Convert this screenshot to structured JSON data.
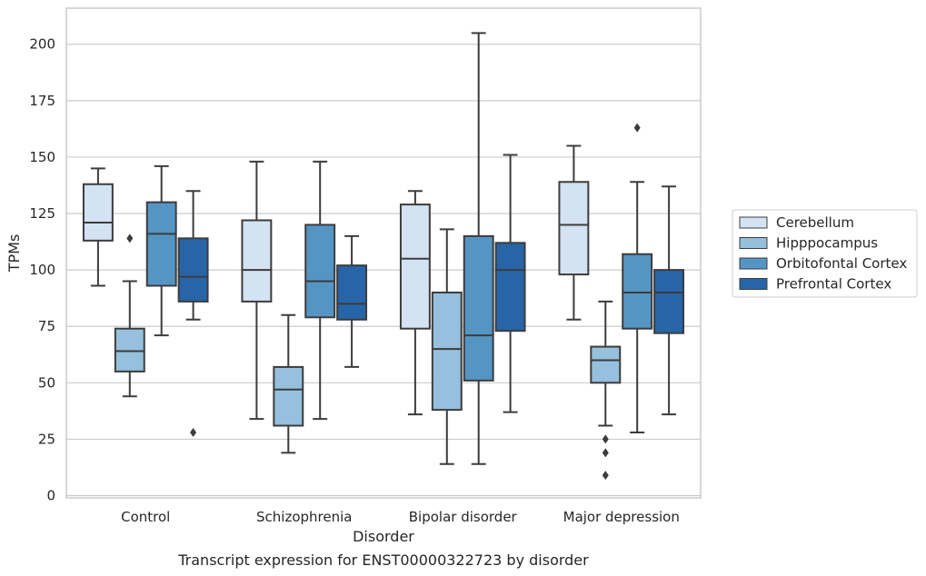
{
  "chart_data": {
    "type": "boxplot",
    "caption": "Transcript expression for ENST00000322723 by disorder",
    "xlabel": "Disorder",
    "ylabel": "TPMs",
    "ylim": [
      -1,
      216
    ],
    "yticks": [
      0,
      25,
      50,
      75,
      100,
      125,
      150,
      175,
      200
    ],
    "grid": true,
    "legend_position": "right",
    "categories": [
      "Control",
      "Schizophrenia",
      "Bipolar disorder",
      "Major depression"
    ],
    "series": [
      {
        "name": "Cerebellum",
        "color": "#d3e3f2",
        "boxes": [
          {
            "whisker_low": 93,
            "q1": 113,
            "median": 121,
            "q3": 138,
            "whisker_high": 145,
            "outliers": []
          },
          {
            "whisker_low": 34,
            "q1": 86,
            "median": 100,
            "q3": 122,
            "whisker_high": 148,
            "outliers": []
          },
          {
            "whisker_low": 36,
            "q1": 74,
            "median": 105,
            "q3": 129,
            "whisker_high": 135,
            "outliers": []
          },
          {
            "whisker_low": 78,
            "q1": 98,
            "median": 120,
            "q3": 139,
            "whisker_high": 155,
            "outliers": []
          }
        ]
      },
      {
        "name": "Hipppocampus",
        "color": "#96c0dd",
        "boxes": [
          {
            "whisker_low": 44,
            "q1": 55,
            "median": 64,
            "q3": 74,
            "whisker_high": 95,
            "outliers": [
              114
            ]
          },
          {
            "whisker_low": 19,
            "q1": 31,
            "median": 47,
            "q3": 57,
            "whisker_high": 80,
            "outliers": []
          },
          {
            "whisker_low": 14,
            "q1": 38,
            "median": 65,
            "q3": 90,
            "whisker_high": 118,
            "outliers": []
          },
          {
            "whisker_low": 31,
            "q1": 50,
            "median": 60,
            "q3": 66,
            "whisker_high": 86,
            "outliers": [
              25,
              19,
              9
            ]
          }
        ]
      },
      {
        "name": "Orbitofontal Cortex",
        "color": "#5495c4",
        "boxes": [
          {
            "whisker_low": 71,
            "q1": 93,
            "median": 116,
            "q3": 130,
            "whisker_high": 146,
            "outliers": []
          },
          {
            "whisker_low": 34,
            "q1": 79,
            "median": 95,
            "q3": 120,
            "whisker_high": 148,
            "outliers": []
          },
          {
            "whisker_low": 14,
            "q1": 51,
            "median": 71,
            "q3": 115,
            "whisker_high": 205,
            "outliers": []
          },
          {
            "whisker_low": 28,
            "q1": 74,
            "median": 90,
            "q3": 107,
            "whisker_high": 139,
            "outliers": [
              163
            ]
          }
        ]
      },
      {
        "name": "Prefrontal Cortex",
        "color": "#2765a8",
        "boxes": [
          {
            "whisker_low": 78,
            "q1": 86,
            "median": 97,
            "q3": 114,
            "whisker_high": 135,
            "outliers": [
              28
            ]
          },
          {
            "whisker_low": 57,
            "q1": 78,
            "median": 85,
            "q3": 102,
            "whisker_high": 115,
            "outliers": []
          },
          {
            "whisker_low": 37,
            "q1": 73,
            "median": 100,
            "q3": 112,
            "whisker_high": 151,
            "outliers": []
          },
          {
            "whisker_low": 36,
            "q1": 72,
            "median": 90,
            "q3": 100,
            "whisker_high": 137,
            "outliers": []
          }
        ]
      }
    ]
  }
}
